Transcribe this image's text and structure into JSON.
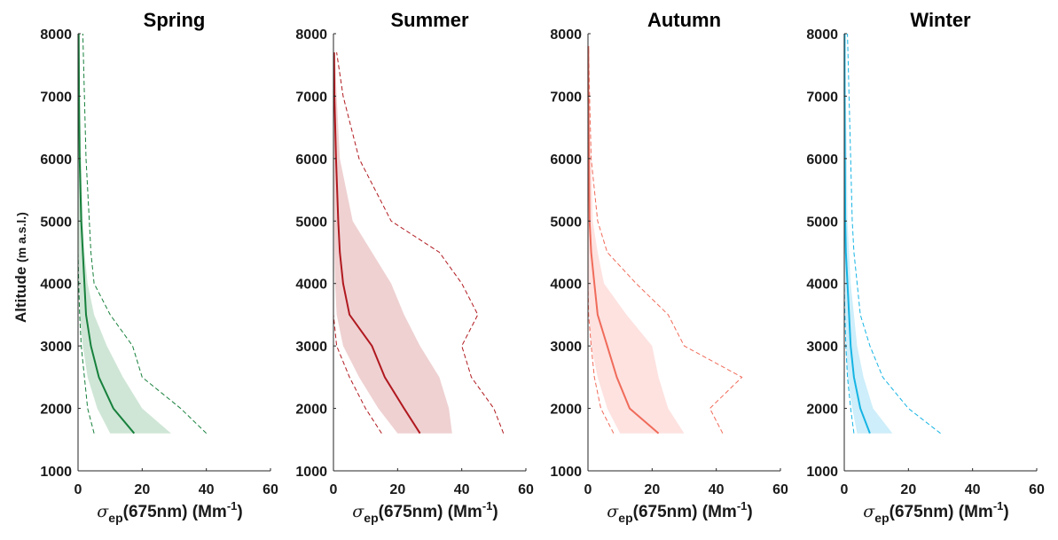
{
  "ylabel": {
    "main": "Altitude ",
    "unit": "(m a.s.l.)"
  },
  "xlabel": {
    "sym": "σ",
    "sub": "ep",
    "mid": "(675nm) (Mm",
    "sup": "-1",
    "end": ")"
  },
  "chart_data": [
    {
      "type": "line",
      "title": "Spring",
      "color": "#17803c",
      "fill_color": "#cfe6d6",
      "xlim": [
        0,
        60
      ],
      "ylim": [
        1000,
        8000
      ],
      "xticks": [
        0,
        20,
        40,
        60
      ],
      "yticks": [
        1000,
        2000,
        3000,
        4000,
        5000,
        6000,
        7000,
        8000
      ],
      "altitude": [
        1600,
        2000,
        2500,
        3000,
        3500,
        4000,
        4500,
        5000,
        6000,
        7000,
        8000
      ],
      "series": [
        {
          "name": "",
          "role": "median",
          "values": [
            17.5,
            11,
            6.5,
            4,
            2.5,
            2,
            1.5,
            1,
            0.5,
            0.3,
            0.2
          ]
        },
        {
          "name": "",
          "role": "band_low",
          "values": [
            10,
            6,
            3,
            1.5,
            0.5,
            0.3,
            0.2,
            0.1,
            0,
            0,
            0
          ]
        },
        {
          "name": "",
          "role": "band_high",
          "values": [
            29,
            20,
            14,
            9,
            5,
            3,
            2,
            1.5,
            1,
            0.5,
            0.3
          ]
        },
        {
          "name": "",
          "role": "p_low",
          "values": [
            5,
            3,
            2,
            1,
            0.5,
            0.2,
            0,
            0,
            0,
            0,
            0
          ]
        },
        {
          "name": "",
          "role": "p_high",
          "values": [
            40,
            32,
            20,
            17,
            10,
            5,
            4,
            3.5,
            2.5,
            2,
            1.5
          ]
        }
      ]
    },
    {
      "type": "line",
      "title": "Summer",
      "color": "#b0191f",
      "fill_color": "#efd1d2",
      "xlim": [
        0,
        60
      ],
      "ylim": [
        1000,
        8000
      ],
      "xticks": [
        0,
        20,
        40,
        60
      ],
      "yticks": [
        1000,
        2000,
        3000,
        4000,
        5000,
        6000,
        7000,
        8000
      ],
      "altitude": [
        1600,
        2000,
        2500,
        3000,
        3500,
        4000,
        4500,
        5000,
        6000,
        7000,
        7700
      ],
      "series": [
        {
          "name": "",
          "role": "median",
          "values": [
            27,
            22,
            16,
            12,
            5,
            3,
            2,
            1.5,
            0.8,
            0.3,
            0.2
          ]
        },
        {
          "name": "",
          "role": "band_low",
          "values": [
            20,
            14,
            8,
            3,
            1,
            0.5,
            0.3,
            0.2,
            0,
            0,
            0
          ]
        },
        {
          "name": "",
          "role": "band_high",
          "values": [
            37,
            36,
            33,
            27,
            22,
            18,
            12,
            6,
            2,
            1,
            0.5
          ]
        },
        {
          "name": "",
          "role": "p_low",
          "values": [
            15,
            10,
            5,
            1,
            0,
            0,
            0,
            0,
            0,
            0,
            0
          ]
        },
        {
          "name": "",
          "role": "p_high",
          "values": [
            53,
            50,
            43,
            40,
            45,
            40,
            33,
            18,
            8,
            3,
            1
          ]
        }
      ]
    },
    {
      "type": "line",
      "title": "Autumn",
      "color": "#f06b5a",
      "fill_color": "#fde2e0",
      "xlim": [
        0,
        60
      ],
      "ylim": [
        1000,
        8000
      ],
      "xticks": [
        0,
        20,
        40,
        60
      ],
      "yticks": [
        1000,
        2000,
        3000,
        4000,
        5000,
        6000,
        7000,
        8000
      ],
      "altitude": [
        1600,
        2000,
        2500,
        3000,
        3500,
        4000,
        4500,
        5000,
        6000,
        7000,
        7800
      ],
      "series": [
        {
          "name": "",
          "role": "median",
          "values": [
            22,
            13,
            9,
            6,
            3,
            2,
            1,
            0.5,
            0.3,
            0.1,
            0.1
          ]
        },
        {
          "name": "",
          "role": "band_low",
          "values": [
            10,
            6,
            3,
            1,
            0.3,
            0.1,
            0,
            0,
            0,
            0,
            0
          ]
        },
        {
          "name": "",
          "role": "band_high",
          "values": [
            30,
            25,
            22,
            20,
            12,
            5,
            3,
            1.5,
            1,
            0.5,
            0.2
          ]
        },
        {
          "name": "",
          "role": "p_low",
          "values": [
            8,
            4,
            2,
            1,
            0.2,
            0,
            0,
            0,
            0,
            0,
            0
          ]
        },
        {
          "name": "",
          "role": "p_high",
          "values": [
            42,
            38,
            48,
            30,
            25,
            15,
            6,
            3,
            1,
            0.5,
            0.2
          ]
        }
      ]
    },
    {
      "type": "line",
      "title": "Winter",
      "color": "#14b4e4",
      "fill_color": "#cdeefa",
      "xlim": [
        0,
        60
      ],
      "ylim": [
        1000,
        8000
      ],
      "xticks": [
        0,
        20,
        40,
        60
      ],
      "yticks": [
        1000,
        2000,
        3000,
        4000,
        5000,
        6000,
        7000,
        8000
      ],
      "altitude": [
        1600,
        2000,
        2500,
        3000,
        3500,
        4000,
        4500,
        5000,
        6000,
        7000,
        8000
      ],
      "series": [
        {
          "name": "",
          "role": "median",
          "values": [
            8,
            5,
            3,
            2,
            1.5,
            1,
            0.5,
            0.3,
            0.2,
            0.1,
            0.1
          ]
        },
        {
          "name": "",
          "role": "band_low",
          "values": [
            4,
            2.5,
            1,
            0.5,
            0.3,
            0.2,
            0,
            0,
            0,
            0,
            0
          ]
        },
        {
          "name": "",
          "role": "band_high",
          "values": [
            15,
            9,
            6,
            4,
            3,
            2,
            1.5,
            1,
            0.8,
            0.5,
            0.3
          ]
        },
        {
          "name": "",
          "role": "p_low",
          "values": [
            3,
            2,
            1,
            0.5,
            0.2,
            0,
            0,
            0,
            0,
            0,
            0
          ]
        },
        {
          "name": "",
          "role": "p_high",
          "values": [
            30,
            20,
            12,
            8,
            5,
            4,
            3,
            2.5,
            2,
            1.5,
            1
          ]
        }
      ]
    }
  ]
}
